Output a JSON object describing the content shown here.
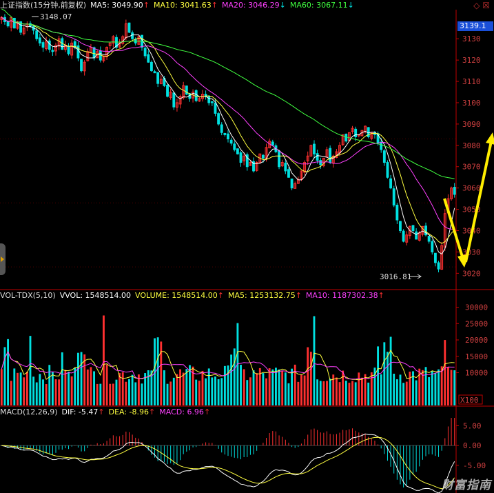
{
  "header": {
    "title": "上证指数(15分钟,前复权)",
    "ma5": "MA5: 3049.90",
    "ma10": "MA10: 3041.63",
    "ma20": "MA20: 3046.29",
    "ma60": "MA60: 3067.11",
    "up": "↑",
    "down": "↓"
  },
  "price_tag": "3139.1",
  "hi_label": "3148.07",
  "lo_label": "3016.81",
  "vol_header": {
    "title": "VOL-TDX(5,10)",
    "vvol": "VVOL: 1548514.00",
    "volume": "VOLUME: 1548514.00",
    "ma5": "MA5: 1253132.75",
    "ma10": "MA10: 1187302.38",
    "up": "↑"
  },
  "macd_header": {
    "title": "MACD(12,26,9)",
    "dif": "DIF: -5.47",
    "dea": "DEA: -8.96",
    "macd": "MACD: 6.96",
    "up": "↑"
  },
  "x100": "X100",
  "watermark": "财富指南",
  "colors": {
    "up": "#ff3030",
    "down": "#00e0e0",
    "ma5": "#ffffff",
    "ma10": "#ffff40",
    "ma20": "#ff40ff",
    "ma60": "#40ff40",
    "axis": "#c00000",
    "arrow": "#ffee00"
  },
  "chart_data": [
    {
      "type": "candlestick",
      "title": "上证指数(15分钟,前复权)",
      "y_ticks": [
        3020,
        3030,
        3040,
        3050,
        3060,
        3070,
        3080,
        3090,
        3100,
        3110,
        3120,
        3130
      ],
      "ylim": [
        3013,
        3143
      ],
      "annotations": [
        "3148.07",
        "3016.81"
      ],
      "closes": [
        3140,
        3138,
        3136,
        3140,
        3135,
        3138,
        3133,
        3135,
        3137,
        3136,
        3134,
        3130,
        3128,
        3126,
        3129,
        3125,
        3124,
        3127,
        3130,
        3125,
        3127,
        3123,
        3128,
        3126,
        3121,
        3115,
        3119,
        3124,
        3126,
        3121,
        3124,
        3120,
        3122,
        3126,
        3128,
        3131,
        3126,
        3128,
        3131,
        3137,
        3133,
        3130,
        3128,
        3131,
        3126,
        3122,
        3119,
        3115,
        3114,
        3109,
        3111,
        3108,
        3103,
        3105,
        3098,
        3100,
        3103,
        3108,
        3104,
        3102,
        3105,
        3101,
        3102,
        3104,
        3103,
        3100,
        3100,
        3095,
        3090,
        3086,
        3085,
        3083,
        3081,
        3078,
        3076,
        3072,
        3075,
        3070,
        3072,
        3068,
        3072,
        3076,
        3074,
        3079,
        3082,
        3080,
        3077,
        3070,
        3072,
        3068,
        3065,
        3060,
        3062,
        3064,
        3068,
        3072,
        3075,
        3080,
        3076,
        3073,
        3071,
        3074,
        3078,
        3072,
        3075,
        3077,
        3080,
        3085,
        3082,
        3086,
        3088,
        3084,
        3085,
        3087,
        3089,
        3084,
        3086,
        3085,
        3081,
        3078,
        3072,
        3065,
        3060,
        3052,
        3045,
        3040,
        3035,
        3038,
        3042,
        3040,
        3036,
        3039,
        3042,
        3038,
        3035,
        3030,
        3025,
        3022,
        3033,
        3048,
        3055,
        3060,
        3057
      ]
    },
    {
      "type": "bar",
      "title": "VOL-TDX(5,10)",
      "y_ticks": [
        10000,
        15000,
        20000,
        25000,
        30000
      ],
      "ylim": [
        0,
        32000
      ],
      "unit": "X100"
    },
    {
      "type": "bar",
      "title": "MACD(12,26,9)",
      "y_ticks": [
        -5.0,
        0.0,
        5.0
      ],
      "ylim": [
        -12,
        7
      ]
    }
  ]
}
